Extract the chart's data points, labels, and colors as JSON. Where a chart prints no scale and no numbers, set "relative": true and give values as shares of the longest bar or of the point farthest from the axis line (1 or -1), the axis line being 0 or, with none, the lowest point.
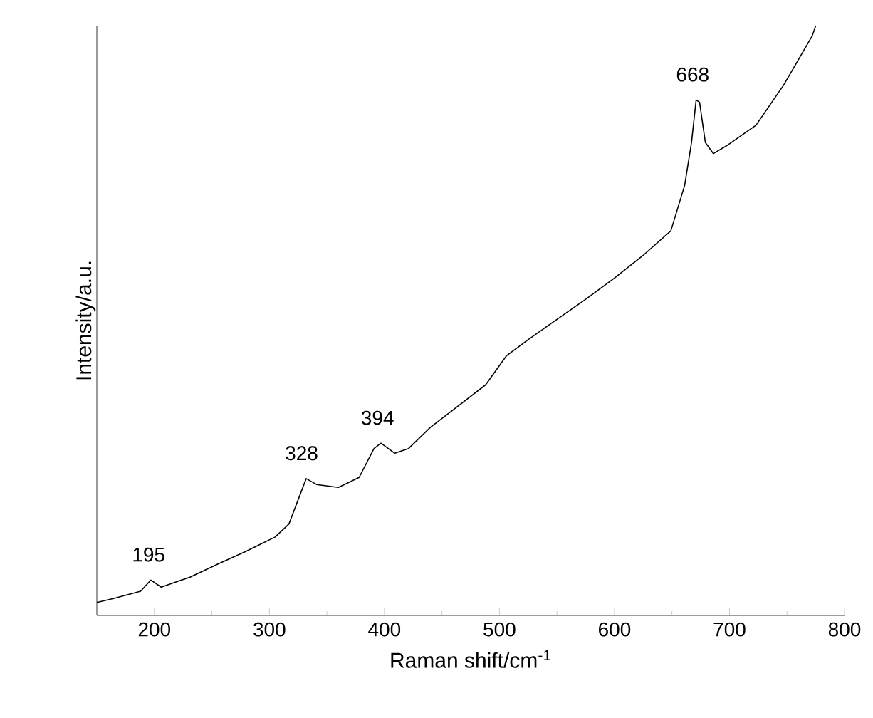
{
  "chart_data": {
    "type": "line",
    "relative": true,
    "color": "#000000",
    "xlabel": "Raman shift/cm$^{-1}$",
    "ylabel": "Intensity/a.u.",
    "xlim": [
      150,
      800
    ],
    "xticks": [
      200,
      300,
      400,
      500,
      600,
      700,
      800
    ],
    "x": [
      150,
      165,
      188,
      197,
      206,
      231,
      255,
      280,
      305,
      317,
      332,
      341,
      360,
      378,
      391,
      397,
      409,
      421,
      440,
      464,
      488,
      506,
      526,
      550,
      575,
      600,
      624,
      649,
      661,
      667,
      671,
      674,
      679,
      686,
      698,
      723,
      747,
      772,
      775
    ],
    "values": [
      0.022,
      0.029,
      0.041,
      0.06,
      0.048,
      0.065,
      0.087,
      0.109,
      0.133,
      0.155,
      0.232,
      0.222,
      0.217,
      0.234,
      0.283,
      0.292,
      0.275,
      0.283,
      0.319,
      0.355,
      0.391,
      0.44,
      0.469,
      0.502,
      0.536,
      0.572,
      0.609,
      0.652,
      0.729,
      0.802,
      0.874,
      0.87,
      0.802,
      0.783,
      0.797,
      0.831,
      0.899,
      0.983,
      1.0
    ],
    "annotations": [
      {
        "text": "195",
        "x": 195,
        "y": 0.06
      },
      {
        "text": "328",
        "x": 328,
        "y": 0.232
      },
      {
        "text": "394",
        "x": 394,
        "y": 0.292
      },
      {
        "text": "668",
        "x": 668,
        "y": 0.874
      }
    ]
  }
}
